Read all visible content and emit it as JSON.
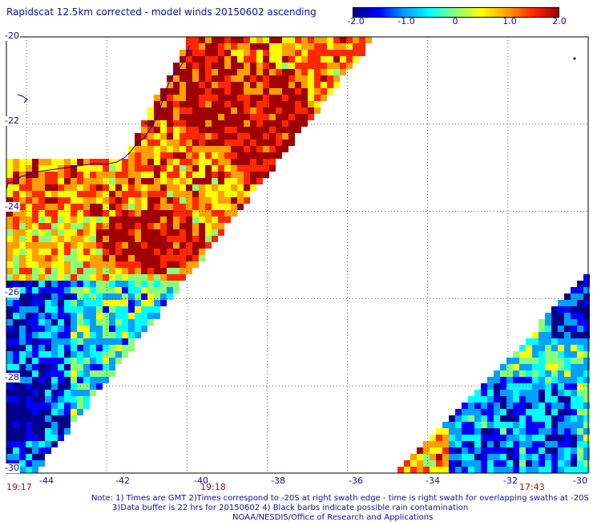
{
  "title": "Rapidscat 12.5km corrected - model winds 20150602 ascending",
  "colorbar": {
    "ticks": [
      "-2.0",
      "-1.0",
      "0",
      "1.0",
      "2.0"
    ],
    "range": [
      -2.0,
      2.0
    ],
    "colors": [
      "#00008c",
      "#0000ff",
      "#00a0ff",
      "#00ffff",
      "#8cff78",
      "#ffff00",
      "#ffa000",
      "#ff2800",
      "#a00000"
    ]
  },
  "axes": {
    "lat_labels": [
      "-20",
      "-22",
      "-24",
      "-26",
      "-28",
      "-30"
    ],
    "lon_labels": [
      "-44",
      "-42",
      "-40",
      "-38",
      "-36",
      "-34",
      "-32",
      "-30"
    ]
  },
  "times": [
    "19:17",
    "19:18",
    "17:43"
  ],
  "notes": [
    "Note: 1) Times are GMT 2)Times correspond to -20S at right swath edge - time is right swath for overlapping swaths at -20S",
    "3)Data buffer is 22 hrs for 20150602 4) Black barbs indicate possible rain contamination",
    "NOAA/NESDIS/Office of Research and Applications"
  ],
  "colors": {
    "label_text": "#1010a0",
    "time_text": "#a01010",
    "grid": "#000000",
    "coast": "#0000cc"
  }
}
